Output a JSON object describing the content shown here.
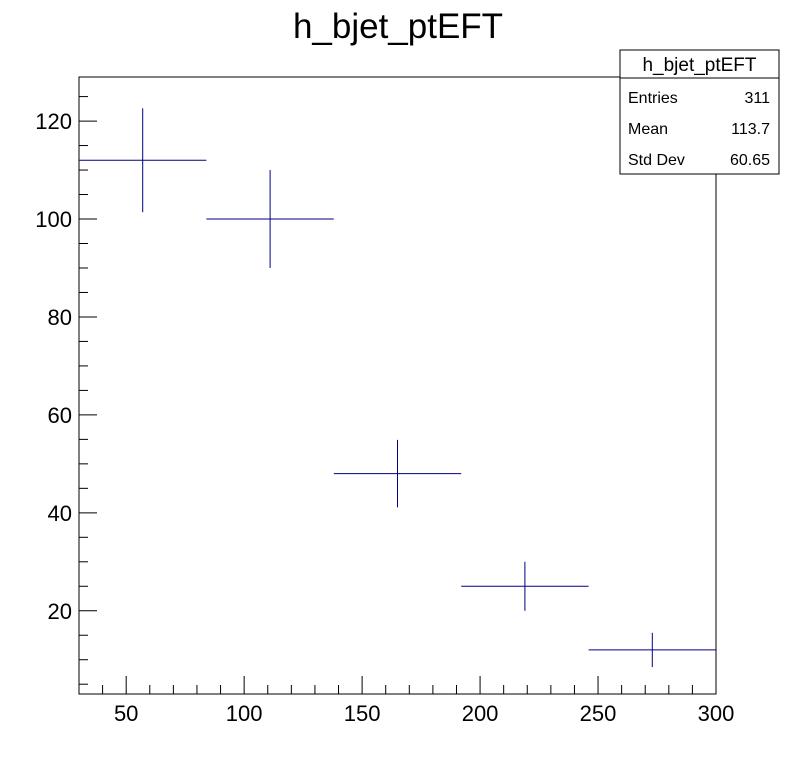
{
  "chart_data": {
    "type": "scatter",
    "title": "h_bjet_ptEFT",
    "xlabel": "",
    "ylabel": "",
    "xlim": [
      30,
      300
    ],
    "ylim": [
      3,
      129
    ],
    "x_ticks": [
      50,
      100,
      150,
      200,
      250,
      300
    ],
    "y_ticks": [
      20,
      40,
      60,
      80,
      100,
      120
    ],
    "grid": false,
    "series": [
      {
        "color": "#000080",
        "points": [
          {
            "x": 57,
            "y": 112,
            "xlow": 30,
            "xhigh": 84,
            "yerr": 10.6
          },
          {
            "x": 111,
            "y": 100,
            "xlow": 84,
            "xhigh": 138,
            "yerr": 10.0
          },
          {
            "x": 165,
            "y": 48,
            "xlow": 138,
            "xhigh": 192,
            "yerr": 6.9
          },
          {
            "x": 219,
            "y": 25,
            "xlow": 192,
            "xhigh": 246,
            "yerr": 5.0
          },
          {
            "x": 273,
            "y": 12,
            "xlow": 246,
            "xhigh": 300,
            "yerr": 3.5
          }
        ]
      }
    ],
    "stats_box": {
      "title": "h_bjet_ptEFT",
      "placement": "top-right",
      "rows": [
        {
          "label": "Entries",
          "value": "311"
        },
        {
          "label": "Mean",
          "value": "113.7"
        },
        {
          "label": "Std Dev",
          "value": "60.65"
        }
      ]
    }
  }
}
